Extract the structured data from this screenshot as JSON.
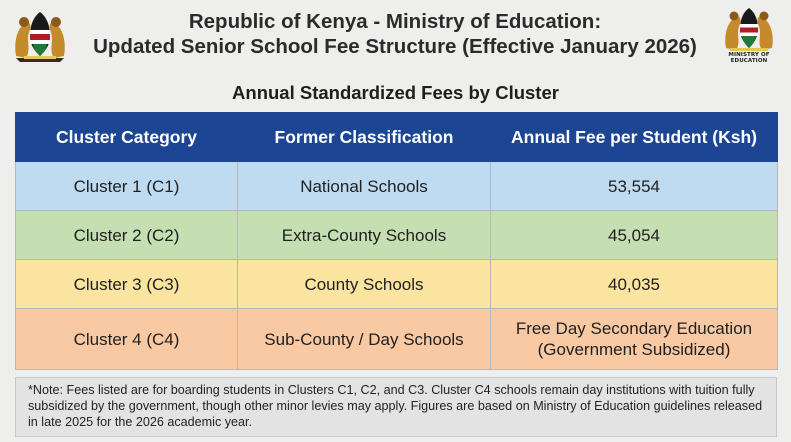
{
  "header": {
    "title_line1": "Republic of Kenya - Ministry of Education:",
    "title_line2": "Updated Senior School Fee Structure (Effective January 2026)",
    "logo_right_label": "MINISTRY OF EDUCATION"
  },
  "subtitle": "Annual Standardized Fees by Cluster",
  "table": {
    "headers": [
      "Cluster Category",
      "Former Classification",
      "Annual Fee per Student (Ksh)"
    ],
    "rows": [
      {
        "cluster": "Cluster 1 (C1)",
        "classification": "National Schools",
        "fee": "53,554",
        "color": "#bedbf1"
      },
      {
        "cluster": "Cluster 2 (C2)",
        "classification": "Extra-County Schools",
        "fee": "45,054",
        "color": "#c5dfb3"
      },
      {
        "cluster": "Cluster 3 (C3)",
        "classification": "County Schools",
        "fee": "40,035",
        "color": "#fbe3a0"
      },
      {
        "cluster": "Cluster 4 (C4)",
        "classification": "Sub-County / Day Schools",
        "fee_line1": "Free Day Secondary Education",
        "fee_line2": "(Government Subsidized)",
        "color": "#f8c9a3"
      }
    ],
    "header_color": "#1c4593"
  },
  "note": "*Note: Fees listed are for boarding students in Clusters C1, C2, and C3. Cluster C4 schools remain day institutions with tuition fully subsidized by the government, though other minor levies may apply. Figures are based on Ministry of Education guidelines released in late 2025 for the 2026 academic year.",
  "icons": [
    "kenya-coat-of-arms-icon",
    "ministry-of-education-logo-icon"
  ]
}
